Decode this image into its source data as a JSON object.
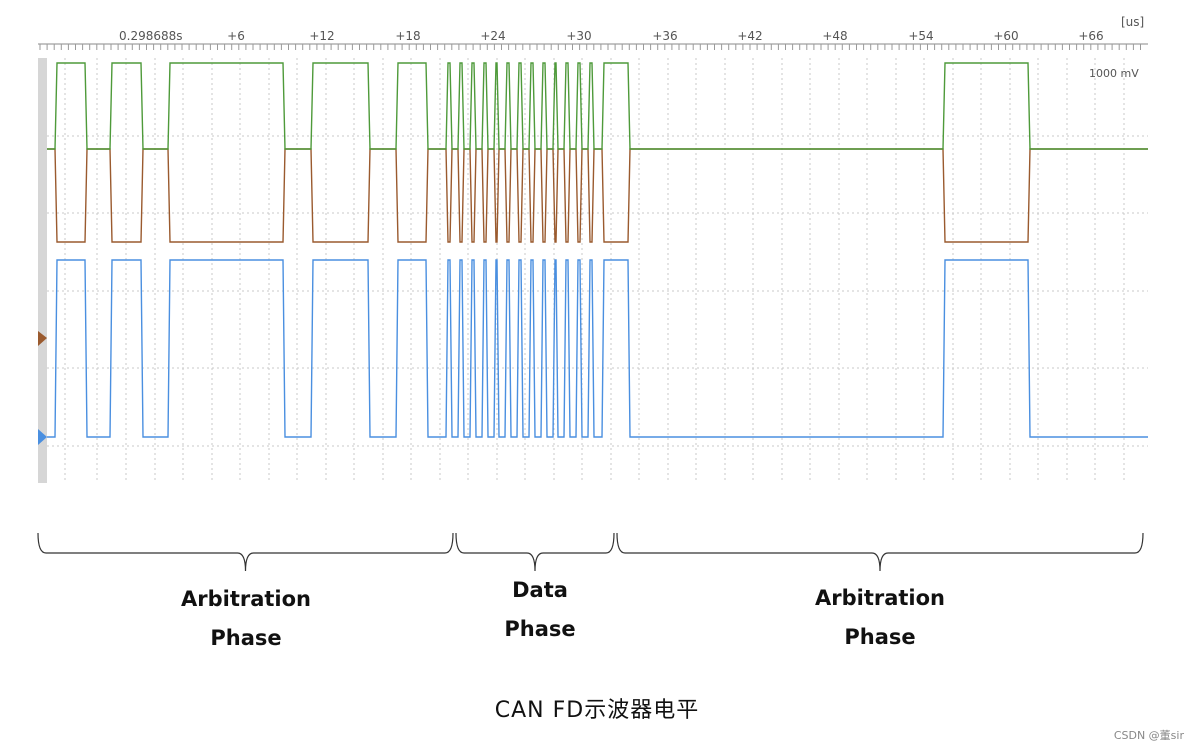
{
  "figure": {
    "caption": "CAN FD示波器电平",
    "watermark": "CSDN @董sir"
  },
  "scope": {
    "time_unit": "[us]",
    "start_time_label": "0.298688s",
    "tick_labels": [
      "+6",
      "+12",
      "+18",
      "+24",
      "+30",
      "+36",
      "+42",
      "+48",
      "+54",
      "+60",
      "+66"
    ],
    "amplitude_label": "1000 mV",
    "colors": {
      "can_h": "#4e9a3a",
      "can_l": "#9a5a2e",
      "logic": "#4a8fe0",
      "grid": "#c8c8c8",
      "left_bar": "#d6d6d6"
    }
  },
  "phases": [
    {
      "line1": "Arbitration",
      "line2": "Phase"
    },
    {
      "line1": "Data",
      "line2": "Phase"
    },
    {
      "line1": "Arbitration",
      "line2": "Phase"
    }
  ]
}
